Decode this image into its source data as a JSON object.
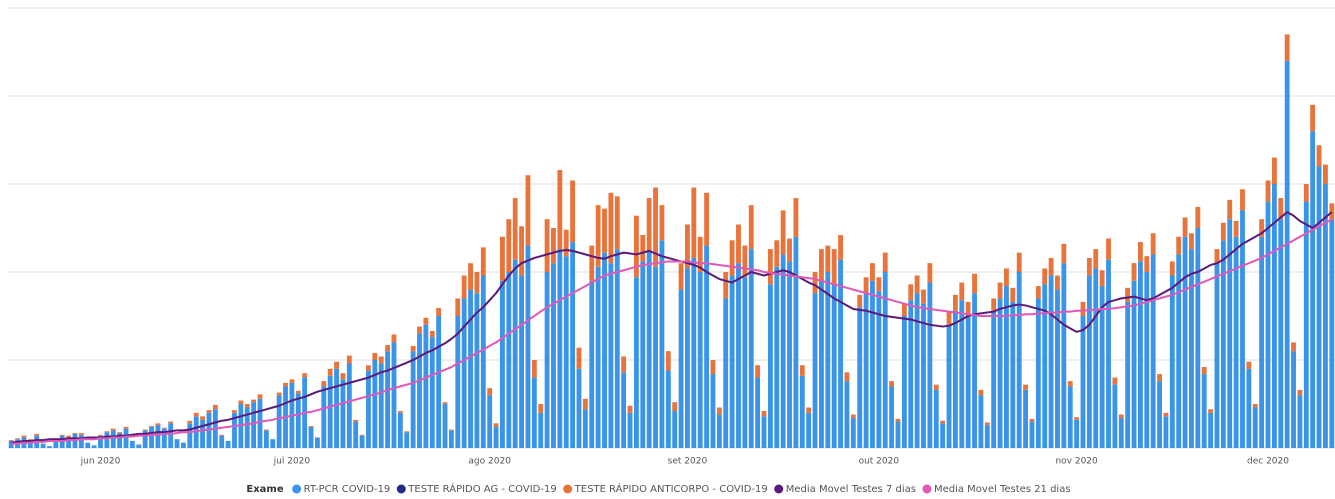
{
  "chart_data": {
    "type": "bar",
    "stacked": true,
    "grid": true,
    "legend_title": "Exame",
    "legend_position": "bottom",
    "ylim": [
      0,
      500
    ],
    "yticks": [
      0,
      100,
      200,
      300,
      400,
      500
    ],
    "categories": [
      null,
      null,
      null,
      null,
      null,
      null,
      null,
      null,
      null,
      null,
      null,
      null,
      null,
      null,
      "jun 2020",
      null,
      null,
      null,
      null,
      null,
      null,
      null,
      null,
      null,
      null,
      null,
      null,
      null,
      null,
      null,
      null,
      null,
      null,
      null,
      null,
      null,
      null,
      null,
      null,
      null,
      null,
      null,
      null,
      null,
      "jul 2020",
      null,
      null,
      null,
      null,
      null,
      null,
      null,
      null,
      null,
      null,
      null,
      null,
      null,
      null,
      null,
      null,
      null,
      null,
      null,
      null,
      null,
      null,
      null,
      null,
      null,
      null,
      null,
      null,
      null,
      null,
      "ago 2020",
      null,
      null,
      null,
      null,
      null,
      null,
      null,
      null,
      null,
      null,
      null,
      null,
      null,
      null,
      null,
      null,
      null,
      null,
      null,
      null,
      null,
      null,
      null,
      null,
      null,
      null,
      null,
      null,
      null,
      null,
      "set 2020",
      null,
      null,
      null,
      null,
      null,
      null,
      null,
      null,
      null,
      null,
      null,
      null,
      null,
      null,
      null,
      null,
      null,
      null,
      null,
      null,
      null,
      null,
      null,
      null,
      null,
      null,
      null,
      null,
      null,
      "out 2020",
      null,
      null,
      null,
      null,
      null,
      null,
      null,
      null,
      null,
      null,
      null,
      null,
      null,
      null,
      null,
      null,
      null,
      null,
      null,
      null,
      null,
      null,
      null,
      null,
      null,
      null,
      null,
      null,
      null,
      null,
      "nov 2020",
      null,
      null,
      null,
      null,
      null,
      null,
      null,
      null,
      null,
      null,
      null,
      null,
      null,
      null,
      null,
      null,
      null,
      null,
      null,
      null,
      null,
      null,
      null,
      null,
      null,
      null,
      null,
      null,
      null,
      "dec 2020",
      null,
      null,
      null,
      null,
      null,
      null,
      null,
      null,
      null,
      null
    ],
    "series": [
      {
        "name": "RT-PCR COVID-19",
        "type": "bar",
        "color": "#3a94e8",
        "values": [
          8,
          10,
          12,
          9,
          14,
          5,
          2,
          10,
          14,
          12,
          16,
          15,
          6,
          3,
          14,
          18,
          20,
          17,
          22,
          8,
          4,
          20,
          24,
          26,
          22,
          28,
          10,
          6,
          28,
          36,
          32,
          40,
          44,
          14,
          8,
          40,
          50,
          46,
          52,
          56,
          20,
          10,
          60,
          70,
          74,
          62,
          80,
          24,
          12,
          70,
          82,
          90,
          78,
          96,
          30,
          14,
          88,
          100,
          96,
          110,
          120,
          40,
          18,
          110,
          130,
          140,
          126,
          150,
          50,
          20,
          150,
          170,
          180,
          176,
          196,
          60,
          24,
          190,
          200,
          214,
          196,
          230,
          80,
          40,
          200,
          210,
          226,
          218,
          234,
          90,
          44,
          190,
          206,
          222,
          210,
          226,
          86,
          40,
          194,
          212,
          224,
          206,
          236,
          88,
          42,
          180,
          204,
          216,
          200,
          230,
          84,
          38,
          170,
          196,
          210,
          194,
          226,
          80,
          36,
          186,
          206,
          220,
          212,
          240,
          82,
          40,
          176,
          190,
          200,
          186,
          214,
          76,
          34,
          160,
          176,
          190,
          178,
          200,
          70,
          30,
          150,
          168,
          176,
          164,
          188,
          66,
          28,
          140,
          156,
          168,
          150,
          176,
          60,
          26,
          156,
          170,
          184,
          166,
          200,
          66,
          30,
          170,
          186,
          196,
          180,
          210,
          70,
          32,
          150,
          196,
          204,
          184,
          214,
          72,
          34,
          166,
          190,
          212,
          200,
          220,
          76,
          36,
          196,
          220,
          240,
          226,
          250,
          84,
          40,
          210,
          236,
          260,
          240,
          270,
          90,
          46,
          240,
          280,
          300,
          260,
          440,
          110,
          60,
          280,
          360,
          320,
          300,
          260
        ]
      },
      {
        "name": "TESTE RÁPIDO AG - COVID-19",
        "type": "bar",
        "color": "#1f2a8a",
        "values": [
          0,
          0,
          0,
          0,
          0,
          0,
          0,
          0,
          0,
          0,
          0,
          0,
          0,
          0,
          0,
          0,
          0,
          0,
          0,
          0,
          0,
          0,
          0,
          0,
          0,
          0,
          0,
          0,
          0,
          0,
          0,
          0,
          0,
          0,
          0,
          0,
          0,
          0,
          0,
          0,
          0,
          0,
          0,
          0,
          0,
          0,
          0,
          0,
          0,
          0,
          0,
          0,
          0,
          0,
          0,
          0,
          0,
          0,
          0,
          0,
          0,
          0,
          0,
          0,
          0,
          0,
          0,
          0,
          0,
          0,
          0,
          0,
          0,
          0,
          0,
          0,
          0,
          0,
          0,
          0,
          0,
          0,
          0,
          0,
          0,
          0,
          0,
          0,
          0,
          0,
          0,
          0,
          0,
          0,
          0,
          0,
          0,
          0,
          0,
          0,
          0,
          0,
          0,
          0,
          0,
          0,
          0,
          0,
          0,
          0,
          0,
          0,
          0,
          0,
          0,
          0,
          0,
          0,
          0,
          0,
          0,
          0,
          0,
          0,
          0,
          0,
          0,
          0,
          0,
          0,
          0,
          0,
          0,
          0,
          0,
          0,
          0,
          0,
          0,
          0,
          0,
          0,
          0,
          0,
          0,
          0,
          0,
          0,
          0,
          0,
          0,
          0,
          0,
          0,
          0,
          0,
          0,
          0,
          0,
          0,
          0,
          0,
          0,
          0,
          0,
          0,
          0,
          0,
          0,
          0,
          0,
          0,
          0,
          0,
          0,
          0,
          0,
          0,
          0,
          0,
          0,
          0,
          0,
          0,
          0,
          0,
          0,
          0,
          0,
          0,
          0,
          0,
          0,
          0,
          0,
          0,
          0,
          0,
          0,
          0,
          0,
          0,
          0,
          0,
          0,
          0,
          0,
          0
        ]
      },
      {
        "name": "TESTE RÁPIDO ANTICORPO - COVID-19",
        "type": "bar",
        "color": "#e8743b",
        "values": [
          1,
          1,
          2,
          1,
          2,
          0,
          0,
          1,
          1,
          2,
          1,
          2,
          0,
          0,
          1,
          1,
          2,
          1,
          2,
          0,
          0,
          1,
          1,
          2,
          1,
          2,
          0,
          0,
          3,
          4,
          4,
          3,
          5,
          1,
          0,
          3,
          4,
          4,
          3,
          5,
          1,
          0,
          3,
          4,
          4,
          3,
          5,
          1,
          0,
          6,
          8,
          8,
          7,
          9,
          2,
          1,
          6,
          8,
          8,
          7,
          9,
          2,
          1,
          6,
          8,
          8,
          7,
          9,
          2,
          1,
          20,
          26,
          30,
          24,
          32,
          8,
          4,
          50,
          60,
          70,
          56,
          80,
          20,
          10,
          60,
          40,
          90,
          30,
          70,
          24,
          12,
          40,
          70,
          50,
          80,
          60,
          18,
          8,
          70,
          30,
          60,
          90,
          40,
          22,
          10,
          30,
          50,
          80,
          40,
          60,
          16,
          8,
          30,
          40,
          44,
          36,
          50,
          14,
          6,
          40,
          30,
          50,
          26,
          44,
          12,
          6,
          24,
          36,
          30,
          40,
          28,
          10,
          4,
          14,
          18,
          20,
          16,
          22,
          6,
          3,
          14,
          18,
          20,
          16,
          22,
          6,
          3,
          14,
          18,
          20,
          16,
          22,
          6,
          3,
          14,
          18,
          20,
          16,
          22,
          6,
          3,
          14,
          18,
          20,
          16,
          22,
          6,
          3,
          16,
          20,
          22,
          18,
          24,
          8,
          4,
          16,
          20,
          22,
          18,
          24,
          8,
          4,
          16,
          20,
          22,
          18,
          24,
          8,
          4,
          16,
          20,
          22,
          18,
          24,
          8,
          4,
          20,
          24,
          30,
          24,
          30,
          10,
          6,
          20,
          30,
          24,
          22,
          18
        ]
      },
      {
        "name": "Media Movel Testes 7 dias",
        "type": "line",
        "color": "#5b1a7a",
        "values": [
          6,
          7,
          8,
          8,
          9,
          9,
          10,
          10,
          10,
          11,
          11,
          11,
          12,
          12,
          12,
          13,
          13,
          14,
          14,
          15,
          16,
          16,
          17,
          18,
          18,
          19,
          20,
          20,
          21,
          23,
          25,
          27,
          29,
          31,
          32,
          34,
          36,
          38,
          40,
          42,
          44,
          46,
          48,
          51,
          54,
          56,
          58,
          61,
          64,
          66,
          68,
          70,
          72,
          74,
          76,
          78,
          80,
          83,
          86,
          88,
          91,
          94,
          97,
          100,
          104,
          108,
          111,
          115,
          119,
          124,
          130,
          138,
          146,
          154,
          160,
          168,
          176,
          186,
          196,
          204,
          210,
          213,
          216,
          218,
          220,
          222,
          224,
          225,
          224,
          222,
          220,
          218,
          216,
          215,
          218,
          220,
          222,
          221,
          220,
          222,
          224,
          221,
          218,
          216,
          214,
          212,
          210,
          208,
          205,
          200,
          196,
          192,
          190,
          188,
          192,
          196,
          200,
          198,
          196,
          198,
          200,
          202,
          200,
          196,
          192,
          188,
          185,
          180,
          175,
          170,
          166,
          162,
          158,
          157,
          156,
          154,
          152,
          150,
          149,
          148,
          147,
          146,
          144,
          142,
          140,
          139,
          138,
          139,
          142,
          146,
          150,
          152,
          153,
          154,
          155,
          158,
          160,
          162,
          163,
          162,
          160,
          158,
          156,
          152,
          146,
          140,
          136,
          132,
          134,
          140,
          150,
          160,
          166,
          168,
          170,
          171,
          172,
          170,
          168,
          170,
          174,
          178,
          182,
          188,
          194,
          198,
          200,
          204,
          208,
          210,
          214,
          220,
          226,
          232,
          236,
          240,
          244,
          250,
          256,
          262,
          268,
          264,
          258,
          254,
          250,
          256,
          262,
          268
        ]
      },
      {
        "name": "Media Movel Testes 21 dias",
        "type": "line",
        "color": "#e058b8",
        "values": [
          5,
          5,
          6,
          6,
          7,
          7,
          8,
          8,
          8,
          9,
          9,
          10,
          10,
          10,
          11,
          11,
          12,
          12,
          13,
          13,
          14,
          14,
          15,
          15,
          16,
          16,
          17,
          18,
          18,
          19,
          20,
          21,
          22,
          23,
          24,
          25,
          26,
          27,
          28,
          30,
          31,
          32,
          34,
          35,
          37,
          38,
          40,
          41,
          43,
          45,
          47,
          49,
          51,
          53,
          55,
          57,
          59,
          61,
          63,
          66,
          68,
          70,
          72,
          74,
          77,
          80,
          83,
          86,
          89,
          92,
          96,
          100,
          104,
          108,
          112,
          116,
          120,
          125,
          130,
          135,
          140,
          145,
          150,
          155,
          160,
          164,
          168,
          172,
          176,
          180,
          184,
          188,
          192,
          196,
          198,
          200,
          202,
          204,
          206,
          208,
          209,
          210,
          211,
          212,
          212,
          212,
          212,
          211,
          210,
          210,
          209,
          208,
          207,
          206,
          205,
          204,
          203,
          202,
          200,
          199,
          198,
          197,
          196,
          195,
          194,
          193,
          192,
          190,
          188,
          186,
          184,
          182,
          180,
          178,
          176,
          174,
          172,
          170,
          168,
          166,
          164,
          162,
          160,
          159,
          158,
          157,
          156,
          155,
          154,
          153,
          152,
          151,
          150,
          150,
          150,
          150,
          150,
          151,
          151,
          152,
          152,
          153,
          153,
          154,
          154,
          155,
          155,
          156,
          156,
          157,
          157,
          158,
          158,
          159,
          160,
          161,
          162,
          164,
          166,
          168,
          170,
          172,
          174,
          177,
          180,
          183,
          186,
          189,
          192,
          195,
          198,
          201,
          204,
          207,
          210,
          213,
          216,
          220,
          224,
          228,
          232,
          236,
          240,
          244,
          248,
          252,
          256,
          260
        ]
      }
    ]
  }
}
